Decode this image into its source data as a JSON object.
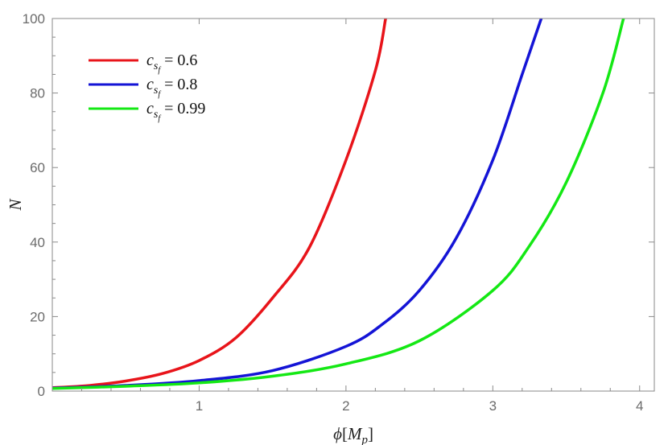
{
  "chart_data": {
    "type": "line",
    "title": "",
    "xlabel": "ϕ[M_p]",
    "ylabel": "N",
    "xlim": [
      0,
      4.1
    ],
    "ylim": [
      0,
      100
    ],
    "grid": false,
    "legend_position": "top-left",
    "x_ticks": [
      {
        "value": 1,
        "label": "1"
      },
      {
        "value": 2,
        "label": "2"
      },
      {
        "value": 3,
        "label": "3"
      },
      {
        "value": 4,
        "label": "4"
      }
    ],
    "y_ticks": [
      {
        "value": 0,
        "label": "0"
      },
      {
        "value": 20,
        "label": "20"
      },
      {
        "value": 40,
        "label": "40"
      },
      {
        "value": 60,
        "label": "60"
      },
      {
        "value": 80,
        "label": "80"
      },
      {
        "value": 100,
        "label": "100"
      }
    ],
    "series": [
      {
        "name": "c_{s_f} = 0.6",
        "legend_var": "c",
        "legend_sub": "s",
        "legend_subsub": "f",
        "legend_rest": " = 0.6",
        "color": "#e8141a",
        "x": [
          0,
          0.25,
          0.5,
          0.75,
          1.0,
          1.25,
          1.5,
          1.75,
          2.0,
          2.2,
          2.27
        ],
        "y": [
          0.9,
          1.5,
          2.7,
          4.7,
          8.2,
          14.3,
          25.0,
          38.5,
          62.0,
          86.0,
          100
        ]
      },
      {
        "name": "c_{s_f} = 0.8",
        "legend_var": "c",
        "legend_sub": "s",
        "legend_subsub": "f",
        "legend_rest": " = 0.8",
        "color": "#1414d6",
        "x": [
          0,
          0.5,
          1.0,
          1.5,
          2.0,
          2.25,
          2.5,
          2.75,
          3.0,
          3.2,
          3.33
        ],
        "y": [
          0.8,
          1.5,
          2.8,
          5.5,
          12.0,
          18.0,
          27.0,
          41.0,
          62.0,
          85.0,
          100
        ]
      },
      {
        "name": "c_{s_f} = 0.99",
        "legend_var": "c",
        "legend_sub": "s",
        "legend_subsub": "f",
        "legend_rest": " = 0.99",
        "color": "#14e814",
        "x": [
          0,
          0.5,
          1.0,
          1.5,
          2.0,
          2.5,
          3.0,
          3.25,
          3.5,
          3.75,
          3.89
        ],
        "y": [
          0.7,
          1.3,
          2.2,
          4.0,
          7.3,
          13.5,
          27.0,
          39.0,
          56.0,
          80.0,
          100
        ]
      }
    ]
  }
}
